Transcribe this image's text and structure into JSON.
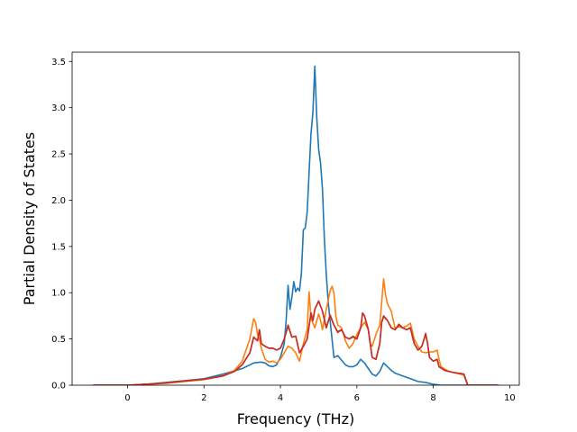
{
  "chart_data": {
    "type": "line",
    "title": "",
    "xlabel": "Frequency (THz)",
    "ylabel": "Partial Density of States",
    "xlim": [
      -1.45,
      10.25
    ],
    "ylim": [
      0,
      3.6
    ],
    "xticks": [
      0,
      2,
      4,
      6,
      8,
      10
    ],
    "yticks": [
      0.0,
      0.5,
      1.0,
      1.5,
      2.0,
      2.5,
      3.0,
      3.5
    ],
    "xtick_labels": [
      "0",
      "2",
      "4",
      "6",
      "8",
      "10"
    ],
    "ytick_labels": [
      "0.0",
      "0.5",
      "1.0",
      "1.5",
      "2.0",
      "2.5",
      "3.0",
      "3.5"
    ],
    "grid": false,
    "legend": false,
    "series": [
      {
        "color": "#1f77b4",
        "points": [
          [
            -0.9,
            0
          ],
          [
            0,
            0
          ],
          [
            0.5,
            0.01
          ],
          [
            1.0,
            0.03
          ],
          [
            1.5,
            0.05
          ],
          [
            2.0,
            0.07
          ],
          [
            2.5,
            0.12
          ],
          [
            3.0,
            0.18
          ],
          [
            3.3,
            0.24
          ],
          [
            3.5,
            0.25
          ],
          [
            3.6,
            0.24
          ],
          [
            3.7,
            0.21
          ],
          [
            3.8,
            0.2
          ],
          [
            3.9,
            0.22
          ],
          [
            4.0,
            0.3
          ],
          [
            4.1,
            0.45
          ],
          [
            4.15,
            0.7
          ],
          [
            4.2,
            1.08
          ],
          [
            4.25,
            0.82
          ],
          [
            4.3,
            0.95
          ],
          [
            4.35,
            1.12
          ],
          [
            4.4,
            1.01
          ],
          [
            4.45,
            1.05
          ],
          [
            4.5,
            1.02
          ],
          [
            4.55,
            1.22
          ],
          [
            4.6,
            1.68
          ],
          [
            4.65,
            1.7
          ],
          [
            4.7,
            1.87
          ],
          [
            4.75,
            2.3
          ],
          [
            4.8,
            2.72
          ],
          [
            4.85,
            2.95
          ],
          [
            4.9,
            3.45
          ],
          [
            4.95,
            2.9
          ],
          [
            5.0,
            2.55
          ],
          [
            5.05,
            2.4
          ],
          [
            5.1,
            2.12
          ],
          [
            5.15,
            1.58
          ],
          [
            5.2,
            1.2
          ],
          [
            5.25,
            0.9
          ],
          [
            5.3,
            0.7
          ],
          [
            5.35,
            0.5
          ],
          [
            5.4,
            0.3
          ],
          [
            5.5,
            0.32
          ],
          [
            5.6,
            0.27
          ],
          [
            5.7,
            0.22
          ],
          [
            5.8,
            0.2
          ],
          [
            5.9,
            0.2
          ],
          [
            6.0,
            0.22
          ],
          [
            6.1,
            0.28
          ],
          [
            6.2,
            0.24
          ],
          [
            6.3,
            0.18
          ],
          [
            6.4,
            0.12
          ],
          [
            6.5,
            0.1
          ],
          [
            6.6,
            0.15
          ],
          [
            6.7,
            0.24
          ],
          [
            6.8,
            0.2
          ],
          [
            6.9,
            0.16
          ],
          [
            7.0,
            0.13
          ],
          [
            7.2,
            0.1
          ],
          [
            7.4,
            0.07
          ],
          [
            7.6,
            0.04
          ],
          [
            7.8,
            0.03
          ],
          [
            8.0,
            0.01
          ],
          [
            8.2,
            0
          ],
          [
            9.7,
            0
          ]
        ]
      },
      {
        "color": "#ff7f0e",
        "points": [
          [
            -0.9,
            0
          ],
          [
            0,
            0
          ],
          [
            0.5,
            0.01
          ],
          [
            1.0,
            0.02
          ],
          [
            1.5,
            0.04
          ],
          [
            2.0,
            0.06
          ],
          [
            2.5,
            0.1
          ],
          [
            2.8,
            0.16
          ],
          [
            3.0,
            0.26
          ],
          [
            3.1,
            0.38
          ],
          [
            3.2,
            0.5
          ],
          [
            3.3,
            0.72
          ],
          [
            3.35,
            0.68
          ],
          [
            3.4,
            0.55
          ],
          [
            3.45,
            0.5
          ],
          [
            3.5,
            0.4
          ],
          [
            3.6,
            0.28
          ],
          [
            3.7,
            0.25
          ],
          [
            3.8,
            0.26
          ],
          [
            3.9,
            0.24
          ],
          [
            4.0,
            0.28
          ],
          [
            4.1,
            0.35
          ],
          [
            4.2,
            0.42
          ],
          [
            4.3,
            0.4
          ],
          [
            4.4,
            0.35
          ],
          [
            4.5,
            0.26
          ],
          [
            4.6,
            0.45
          ],
          [
            4.7,
            0.6
          ],
          [
            4.75,
            1.01
          ],
          [
            4.8,
            0.72
          ],
          [
            4.9,
            0.62
          ],
          [
            5.0,
            0.77
          ],
          [
            5.05,
            0.7
          ],
          [
            5.1,
            0.6
          ],
          [
            5.2,
            0.82
          ],
          [
            5.3,
            1.02
          ],
          [
            5.35,
            1.07
          ],
          [
            5.4,
            1.0
          ],
          [
            5.45,
            0.75
          ],
          [
            5.5,
            0.65
          ],
          [
            5.6,
            0.62
          ],
          [
            5.7,
            0.48
          ],
          [
            5.8,
            0.4
          ],
          [
            5.9,
            0.45
          ],
          [
            6.0,
            0.55
          ],
          [
            6.1,
            0.62
          ],
          [
            6.2,
            0.68
          ],
          [
            6.3,
            0.6
          ],
          [
            6.35,
            0.45
          ],
          [
            6.4,
            0.42
          ],
          [
            6.5,
            0.55
          ],
          [
            6.6,
            0.65
          ],
          [
            6.65,
            0.9
          ],
          [
            6.7,
            1.15
          ],
          [
            6.75,
            0.98
          ],
          [
            6.8,
            0.88
          ],
          [
            6.9,
            0.8
          ],
          [
            7.0,
            0.62
          ],
          [
            7.1,
            0.63
          ],
          [
            7.2,
            0.62
          ],
          [
            7.3,
            0.64
          ],
          [
            7.4,
            0.67
          ],
          [
            7.5,
            0.5
          ],
          [
            7.6,
            0.42
          ],
          [
            7.7,
            0.36
          ],
          [
            7.8,
            0.35
          ],
          [
            7.9,
            0.36
          ],
          [
            8.0,
            0.36
          ],
          [
            8.1,
            0.38
          ],
          [
            8.15,
            0.28
          ],
          [
            8.2,
            0.2
          ],
          [
            8.4,
            0.15
          ],
          [
            8.6,
            0.13
          ],
          [
            8.8,
            0.11
          ],
          [
            8.9,
            0
          ],
          [
            9.7,
            0
          ]
        ]
      },
      {
        "color": "#2ca02c",
        "points": [
          [
            -0.9,
            0
          ],
          [
            0,
            0
          ],
          [
            0.5,
            0.01
          ],
          [
            1.0,
            0.025
          ],
          [
            1.5,
            0.045
          ],
          [
            2.0,
            0.065
          ],
          [
            2.5,
            0.1
          ],
          [
            2.8,
            0.15
          ],
          [
            3.0,
            0.22
          ],
          [
            3.2,
            0.35
          ],
          [
            3.3,
            0.52
          ],
          [
            3.4,
            0.48
          ],
          [
            3.45,
            0.6
          ],
          [
            3.5,
            0.45
          ],
          [
            3.6,
            0.42
          ],
          [
            3.7,
            0.4
          ],
          [
            3.8,
            0.4
          ],
          [
            3.9,
            0.38
          ],
          [
            4.0,
            0.4
          ],
          [
            4.1,
            0.5
          ],
          [
            4.2,
            0.64
          ],
          [
            4.3,
            0.52
          ],
          [
            4.4,
            0.53
          ],
          [
            4.5,
            0.35
          ],
          [
            4.6,
            0.42
          ],
          [
            4.7,
            0.5
          ],
          [
            4.8,
            0.78
          ],
          [
            4.85,
            0.7
          ],
          [
            4.9,
            0.82
          ],
          [
            5.0,
            0.91
          ],
          [
            5.1,
            0.8
          ],
          [
            5.2,
            0.62
          ],
          [
            5.3,
            0.75
          ],
          [
            5.4,
            0.65
          ],
          [
            5.5,
            0.58
          ],
          [
            5.6,
            0.6
          ],
          [
            5.7,
            0.52
          ],
          [
            5.8,
            0.5
          ],
          [
            5.9,
            0.52
          ],
          [
            6.0,
            0.5
          ],
          [
            6.1,
            0.62
          ],
          [
            6.15,
            0.78
          ],
          [
            6.2,
            0.75
          ],
          [
            6.3,
            0.6
          ],
          [
            6.4,
            0.3
          ],
          [
            6.5,
            0.28
          ],
          [
            6.6,
            0.45
          ],
          [
            6.65,
            0.68
          ],
          [
            6.7,
            0.74
          ],
          [
            6.8,
            0.7
          ],
          [
            6.9,
            0.62
          ],
          [
            7.0,
            0.6
          ],
          [
            7.1,
            0.65
          ],
          [
            7.2,
            0.62
          ],
          [
            7.3,
            0.6
          ],
          [
            7.4,
            0.62
          ],
          [
            7.5,
            0.45
          ],
          [
            7.6,
            0.38
          ],
          [
            7.7,
            0.42
          ],
          [
            7.8,
            0.55
          ],
          [
            7.85,
            0.45
          ],
          [
            7.9,
            0.3
          ],
          [
            8.0,
            0.26
          ],
          [
            8.1,
            0.28
          ],
          [
            8.15,
            0.2
          ],
          [
            8.3,
            0.16
          ],
          [
            8.5,
            0.14
          ],
          [
            8.8,
            0.12
          ],
          [
            8.9,
            0
          ],
          [
            9.7,
            0
          ]
        ]
      },
      {
        "color": "#d62728",
        "points": [
          [
            -0.9,
            0
          ],
          [
            0,
            0
          ],
          [
            0.5,
            0.01
          ],
          [
            1.0,
            0.025
          ],
          [
            1.5,
            0.045
          ],
          [
            2.0,
            0.065
          ],
          [
            2.5,
            0.1
          ],
          [
            2.8,
            0.15
          ],
          [
            3.0,
            0.22
          ],
          [
            3.2,
            0.35
          ],
          [
            3.3,
            0.52
          ],
          [
            3.4,
            0.48
          ],
          [
            3.45,
            0.6
          ],
          [
            3.5,
            0.45
          ],
          [
            3.6,
            0.42
          ],
          [
            3.7,
            0.4
          ],
          [
            3.8,
            0.4
          ],
          [
            3.9,
            0.38
          ],
          [
            4.0,
            0.4
          ],
          [
            4.1,
            0.5
          ],
          [
            4.2,
            0.65
          ],
          [
            4.3,
            0.52
          ],
          [
            4.4,
            0.53
          ],
          [
            4.5,
            0.35
          ],
          [
            4.6,
            0.42
          ],
          [
            4.7,
            0.5
          ],
          [
            4.8,
            0.78
          ],
          [
            4.85,
            0.7
          ],
          [
            4.9,
            0.82
          ],
          [
            5.0,
            0.91
          ],
          [
            5.1,
            0.8
          ],
          [
            5.2,
            0.62
          ],
          [
            5.3,
            0.76
          ],
          [
            5.4,
            0.65
          ],
          [
            5.5,
            0.57
          ],
          [
            5.6,
            0.6
          ],
          [
            5.7,
            0.52
          ],
          [
            5.8,
            0.5
          ],
          [
            5.9,
            0.53
          ],
          [
            6.0,
            0.5
          ],
          [
            6.1,
            0.62
          ],
          [
            6.15,
            0.78
          ],
          [
            6.2,
            0.75
          ],
          [
            6.3,
            0.6
          ],
          [
            6.4,
            0.3
          ],
          [
            6.5,
            0.28
          ],
          [
            6.6,
            0.45
          ],
          [
            6.65,
            0.68
          ],
          [
            6.7,
            0.75
          ],
          [
            6.8,
            0.7
          ],
          [
            6.9,
            0.62
          ],
          [
            7.0,
            0.6
          ],
          [
            7.1,
            0.66
          ],
          [
            7.2,
            0.62
          ],
          [
            7.3,
            0.6
          ],
          [
            7.4,
            0.62
          ],
          [
            7.5,
            0.45
          ],
          [
            7.6,
            0.38
          ],
          [
            7.7,
            0.42
          ],
          [
            7.8,
            0.56
          ],
          [
            7.85,
            0.45
          ],
          [
            7.9,
            0.3
          ],
          [
            8.0,
            0.26
          ],
          [
            8.1,
            0.28
          ],
          [
            8.15,
            0.2
          ],
          [
            8.3,
            0.16
          ],
          [
            8.5,
            0.14
          ],
          [
            8.8,
            0.12
          ],
          [
            8.9,
            0
          ],
          [
            9.7,
            0
          ]
        ]
      }
    ]
  }
}
